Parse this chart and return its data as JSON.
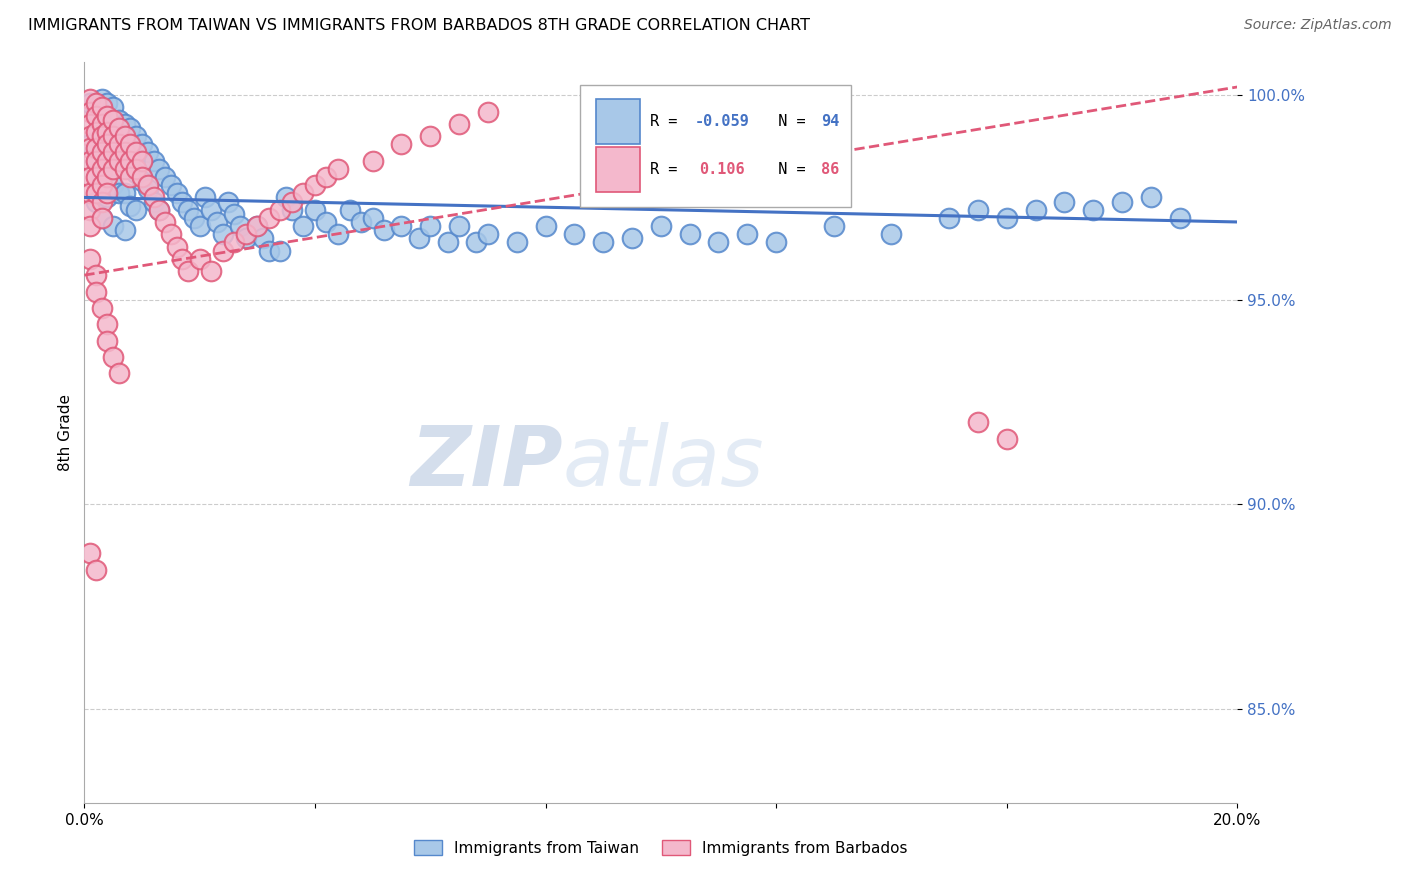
{
  "title": "IMMIGRANTS FROM TAIWAN VS IMMIGRANTS FROM BARBADOS 8TH GRADE CORRELATION CHART",
  "source": "Source: ZipAtlas.com",
  "ylabel": "8th Grade",
  "legend_taiwan": "Immigrants from Taiwan",
  "legend_barbados": "Immigrants from Barbados",
  "R_taiwan": -0.059,
  "N_taiwan": 94,
  "R_barbados": 0.106,
  "N_barbados": 86,
  "color_taiwan_fill": "#a8c8e8",
  "color_taiwan_edge": "#5588cc",
  "color_barbados_fill": "#f4b8cc",
  "color_barbados_edge": "#e05878",
  "color_taiwan_line": "#4472c4",
  "color_barbados_line": "#e05878",
  "xmin": 0.0,
  "xmax": 0.2,
  "ymin": 0.827,
  "ymax": 1.008,
  "y_ticks": [
    0.85,
    0.9,
    0.95,
    1.0
  ],
  "y_tick_labels": [
    "85.0%",
    "90.0%",
    "95.0%",
    "100.0%"
  ],
  "x_ticks": [
    0.0,
    0.04,
    0.08,
    0.12,
    0.16,
    0.2
  ],
  "x_tick_labels": [
    "0.0%",
    "",
    "",
    "",
    "",
    "20.0%"
  ],
  "tw_trend_y0": 0.975,
  "tw_trend_y1": 0.969,
  "bb_trend_y0": 0.956,
  "bb_trend_y1": 1.002,
  "taiwan_x": [
    0.001,
    0.001,
    0.002,
    0.002,
    0.002,
    0.003,
    0.003,
    0.003,
    0.003,
    0.004,
    0.004,
    0.004,
    0.005,
    0.005,
    0.005,
    0.005,
    0.006,
    0.006,
    0.006,
    0.007,
    0.007,
    0.007,
    0.007,
    0.008,
    0.008,
    0.008,
    0.009,
    0.009,
    0.009,
    0.01,
    0.01,
    0.011,
    0.011,
    0.012,
    0.012,
    0.013,
    0.013,
    0.014,
    0.015,
    0.016,
    0.017,
    0.018,
    0.019,
    0.02,
    0.021,
    0.022,
    0.023,
    0.024,
    0.025,
    0.026,
    0.027,
    0.028,
    0.03,
    0.031,
    0.032,
    0.034,
    0.035,
    0.036,
    0.038,
    0.04,
    0.042,
    0.044,
    0.046,
    0.048,
    0.05,
    0.052,
    0.055,
    0.058,
    0.06,
    0.063,
    0.065,
    0.068,
    0.07,
    0.075,
    0.08,
    0.085,
    0.09,
    0.095,
    0.1,
    0.105,
    0.11,
    0.115,
    0.12,
    0.13,
    0.14,
    0.15,
    0.155,
    0.16,
    0.165,
    0.17,
    0.175,
    0.18,
    0.185,
    0.19
  ],
  "taiwan_y": [
    0.998,
    0.988,
    0.996,
    0.984,
    0.974,
    0.999,
    0.99,
    0.98,
    0.97,
    0.998,
    0.986,
    0.975,
    0.997,
    0.988,
    0.978,
    0.968,
    0.994,
    0.985,
    0.976,
    0.993,
    0.984,
    0.976,
    0.967,
    0.992,
    0.982,
    0.973,
    0.99,
    0.981,
    0.972,
    0.988,
    0.979,
    0.986,
    0.977,
    0.984,
    0.974,
    0.982,
    0.972,
    0.98,
    0.978,
    0.976,
    0.974,
    0.972,
    0.97,
    0.968,
    0.975,
    0.972,
    0.969,
    0.966,
    0.974,
    0.971,
    0.968,
    0.965,
    0.968,
    0.965,
    0.962,
    0.962,
    0.975,
    0.972,
    0.968,
    0.972,
    0.969,
    0.966,
    0.972,
    0.969,
    0.97,
    0.967,
    0.968,
    0.965,
    0.968,
    0.964,
    0.968,
    0.964,
    0.966,
    0.964,
    0.968,
    0.966,
    0.964,
    0.965,
    0.968,
    0.966,
    0.964,
    0.966,
    0.964,
    0.968,
    0.966,
    0.97,
    0.972,
    0.97,
    0.972,
    0.974,
    0.972,
    0.974,
    0.975,
    0.97
  ],
  "barbados_x": [
    0.001,
    0.001,
    0.001,
    0.001,
    0.001,
    0.001,
    0.001,
    0.001,
    0.001,
    0.001,
    0.002,
    0.002,
    0.002,
    0.002,
    0.002,
    0.002,
    0.002,
    0.003,
    0.003,
    0.003,
    0.003,
    0.003,
    0.003,
    0.003,
    0.003,
    0.004,
    0.004,
    0.004,
    0.004,
    0.004,
    0.004,
    0.005,
    0.005,
    0.005,
    0.005,
    0.006,
    0.006,
    0.006,
    0.007,
    0.007,
    0.007,
    0.008,
    0.008,
    0.008,
    0.009,
    0.009,
    0.01,
    0.01,
    0.011,
    0.012,
    0.013,
    0.014,
    0.015,
    0.016,
    0.017,
    0.018,
    0.02,
    0.022,
    0.024,
    0.026,
    0.028,
    0.03,
    0.032,
    0.034,
    0.036,
    0.038,
    0.04,
    0.042,
    0.044,
    0.05,
    0.055,
    0.06,
    0.065,
    0.07,
    0.001,
    0.002,
    0.002,
    0.003,
    0.004,
    0.004,
    0.005,
    0.006,
    0.155,
    0.16,
    0.001,
    0.002
  ],
  "barbados_y": [
    0.999,
    0.996,
    0.993,
    0.99,
    0.987,
    0.984,
    0.98,
    0.976,
    0.972,
    0.968,
    0.998,
    0.995,
    0.991,
    0.987,
    0.984,
    0.98,
    0.976,
    0.997,
    0.993,
    0.99,
    0.986,
    0.982,
    0.978,
    0.974,
    0.97,
    0.995,
    0.991,
    0.988,
    0.984,
    0.98,
    0.976,
    0.994,
    0.99,
    0.986,
    0.982,
    0.992,
    0.988,
    0.984,
    0.99,
    0.986,
    0.982,
    0.988,
    0.984,
    0.98,
    0.986,
    0.982,
    0.984,
    0.98,
    0.978,
    0.975,
    0.972,
    0.969,
    0.966,
    0.963,
    0.96,
    0.957,
    0.96,
    0.957,
    0.962,
    0.964,
    0.966,
    0.968,
    0.97,
    0.972,
    0.974,
    0.976,
    0.978,
    0.98,
    0.982,
    0.984,
    0.988,
    0.99,
    0.993,
    0.996,
    0.96,
    0.956,
    0.952,
    0.948,
    0.944,
    0.94,
    0.936,
    0.932,
    0.92,
    0.916,
    0.888,
    0.884
  ]
}
